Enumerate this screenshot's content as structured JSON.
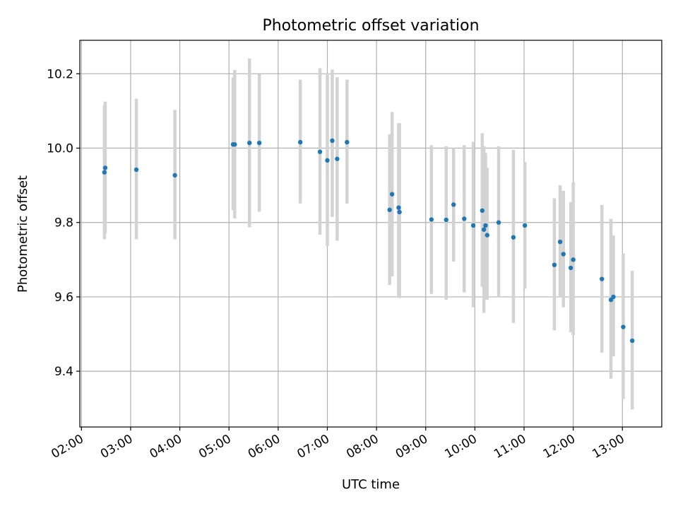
{
  "chart_data": {
    "type": "scatter",
    "title": "Photometric offset variation",
    "xlabel": "UTC time",
    "ylabel": "Photometric offset",
    "xlim": [
      "01:58",
      "13:48"
    ],
    "ylim": [
      9.25,
      10.29
    ],
    "x_ticks": [
      "02:00",
      "03:00",
      "04:00",
      "05:00",
      "06:00",
      "07:00",
      "08:00",
      "09:00",
      "10:00",
      "11:00",
      "12:00",
      "13:00"
    ],
    "y_ticks": [
      9.4,
      9.6,
      9.8,
      10.0,
      10.2
    ],
    "y_tick_labels": [
      "9.4",
      "9.6",
      "9.8",
      "10.0",
      "10.2"
    ],
    "grid": true,
    "marker_color": "#1f77b4",
    "errorbar_color": "#d3d3d3",
    "points": [
      {
        "time": "02:28",
        "y": 9.935,
        "ylo": 9.755,
        "yhi": 10.115
      },
      {
        "time": "02:29",
        "y": 9.947,
        "ylo": 9.77,
        "yhi": 10.125
      },
      {
        "time": "03:07",
        "y": 9.942,
        "ylo": 9.755,
        "yhi": 10.133
      },
      {
        "time": "03:54",
        "y": 9.927,
        "ylo": 9.755,
        "yhi": 10.103
      },
      {
        "time": "05:05",
        "y": 10.01,
        "ylo": 9.833,
        "yhi": 10.19
      },
      {
        "time": "05:07",
        "y": 10.01,
        "ylo": 9.811,
        "yhi": 10.21
      },
      {
        "time": "05:25",
        "y": 10.014,
        "ylo": 9.787,
        "yhi": 10.241
      },
      {
        "time": "05:37",
        "y": 10.014,
        "ylo": 9.829,
        "yhi": 10.199
      },
      {
        "time": "06:27",
        "y": 10.016,
        "ylo": 9.851,
        "yhi": 10.184
      },
      {
        "time": "06:51",
        "y": 9.99,
        "ylo": 9.767,
        "yhi": 10.215
      },
      {
        "time": "07:00",
        "y": 9.967,
        "ylo": 9.737,
        "yhi": 10.201
      },
      {
        "time": "07:06",
        "y": 10.02,
        "ylo": 9.815,
        "yhi": 10.211
      },
      {
        "time": "07:12",
        "y": 9.971,
        "ylo": 9.751,
        "yhi": 10.191
      },
      {
        "time": "07:24",
        "y": 10.016,
        "ylo": 9.851,
        "yhi": 10.184
      },
      {
        "time": "08:16",
        "y": 9.834,
        "ylo": 9.632,
        "yhi": 10.037
      },
      {
        "time": "08:19",
        "y": 9.876,
        "ylo": 9.655,
        "yhi": 10.097
      },
      {
        "time": "08:27",
        "y": 9.84,
        "ylo": 9.6,
        "yhi": 10.067
      },
      {
        "time": "08:28",
        "y": 9.828,
        "ylo": 9.597,
        "yhi": 10.067
      },
      {
        "time": "09:07",
        "y": 9.808,
        "ylo": 9.608,
        "yhi": 10.008
      },
      {
        "time": "09:25",
        "y": 9.807,
        "ylo": 9.592,
        "yhi": 10.005
      },
      {
        "time": "09:34",
        "y": 9.848,
        "ylo": 9.695,
        "yhi": 10.0
      },
      {
        "time": "09:47",
        "y": 9.81,
        "ylo": 9.612,
        "yhi": 10.008
      },
      {
        "time": "09:58",
        "y": 9.792,
        "ylo": 9.572,
        "yhi": 10.017
      },
      {
        "time": "10:09",
        "y": 9.832,
        "ylo": 9.627,
        "yhi": 10.04
      },
      {
        "time": "10:11",
        "y": 9.781,
        "ylo": 9.557,
        "yhi": 10.005
      },
      {
        "time": "10:13",
        "y": 9.792,
        "ylo": 9.592,
        "yhi": 9.987
      },
      {
        "time": "10:15",
        "y": 9.766,
        "ylo": 9.592,
        "yhi": 9.947
      },
      {
        "time": "10:29",
        "y": 9.8,
        "ylo": 9.6,
        "yhi": 10.005
      },
      {
        "time": "10:47",
        "y": 9.76,
        "ylo": 9.53,
        "yhi": 9.995
      },
      {
        "time": "11:01",
        "y": 9.792,
        "ylo": 9.622,
        "yhi": 9.963
      },
      {
        "time": "11:37",
        "y": 9.686,
        "ylo": 9.51,
        "yhi": 9.865
      },
      {
        "time": "11:44",
        "y": 9.748,
        "ylo": 9.598,
        "yhi": 9.9
      },
      {
        "time": "11:48",
        "y": 9.715,
        "ylo": 9.572,
        "yhi": 9.885
      },
      {
        "time": "11:57",
        "y": 9.678,
        "ylo": 9.505,
        "yhi": 9.855
      },
      {
        "time": "12:00",
        "y": 9.7,
        "ylo": 9.497,
        "yhi": 9.908
      },
      {
        "time": "12:35",
        "y": 9.648,
        "ylo": 9.45,
        "yhi": 9.847
      },
      {
        "time": "12:46",
        "y": 9.592,
        "ylo": 9.38,
        "yhi": 9.81
      },
      {
        "time": "12:49",
        "y": 9.6,
        "ylo": 9.44,
        "yhi": 9.765
      },
      {
        "time": "13:01",
        "y": 9.519,
        "ylo": 9.325,
        "yhi": 9.717
      },
      {
        "time": "13:12",
        "y": 9.482,
        "ylo": 9.297,
        "yhi": 9.67
      }
    ]
  }
}
